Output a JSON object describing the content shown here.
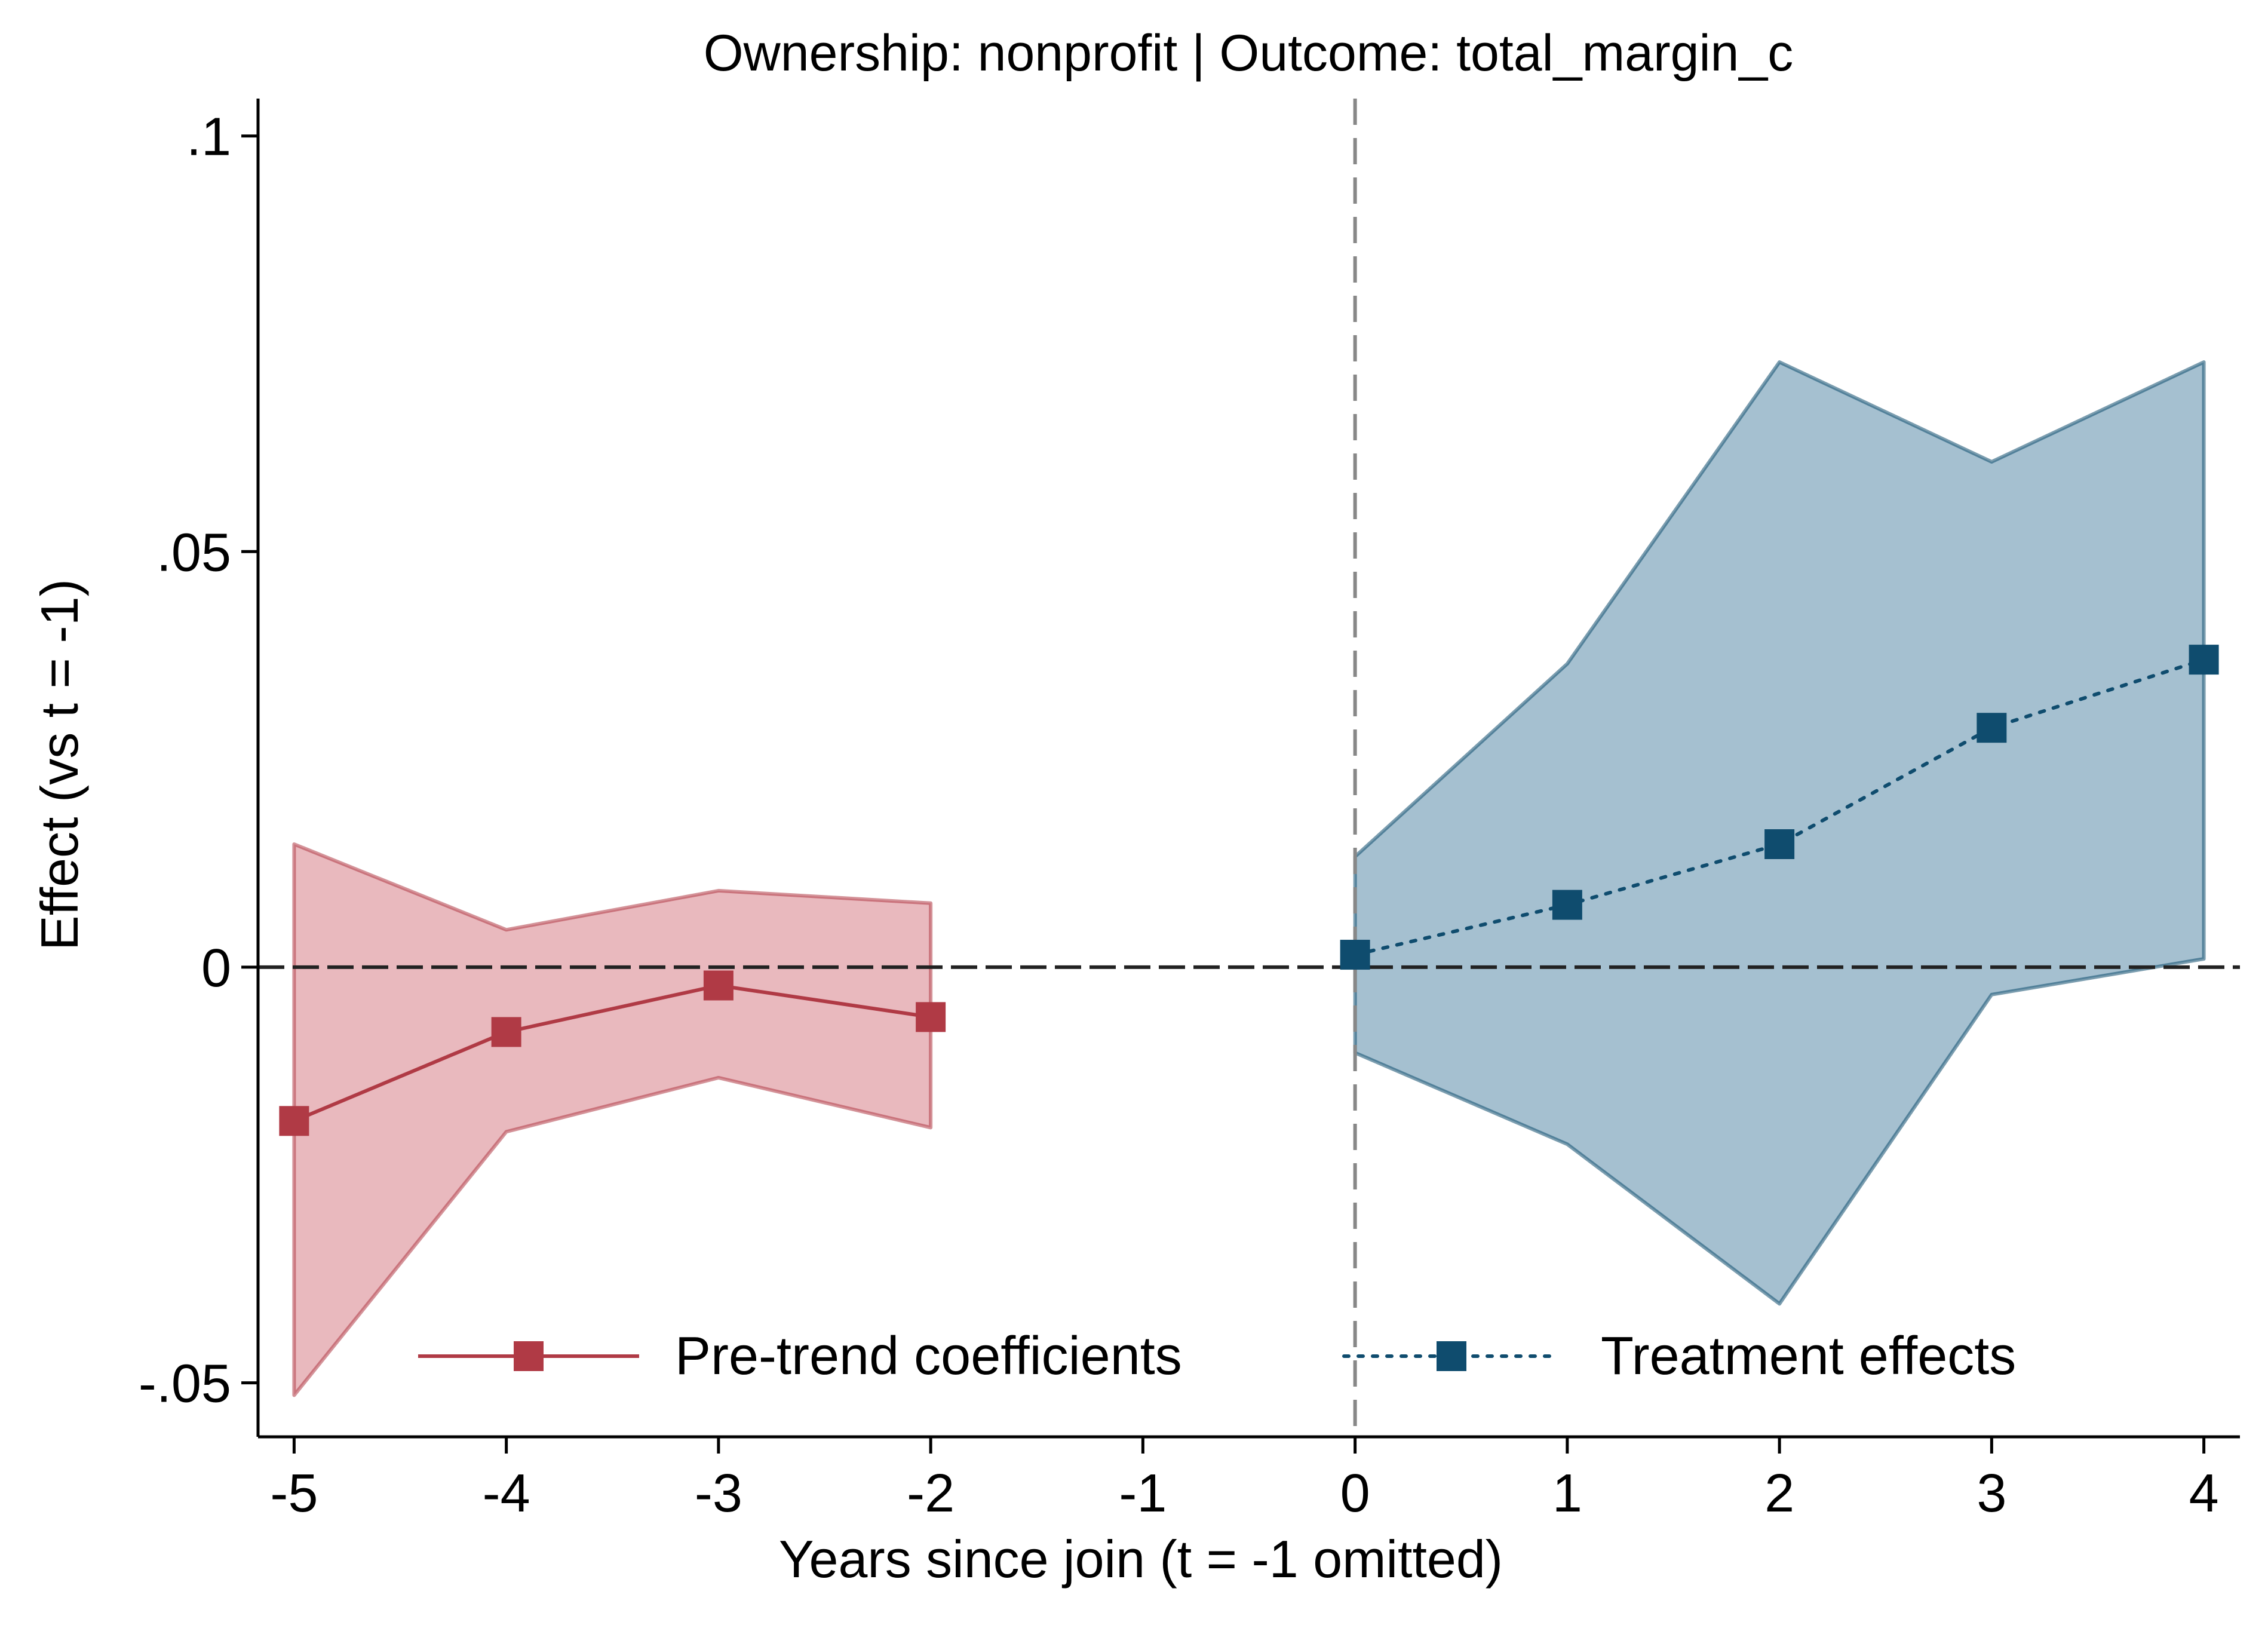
{
  "chart_data": {
    "type": "line",
    "title": "Ownership: nonprofit | Outcome: total_margin_c",
    "xlabel": "Years since join (t = -1 omitted)",
    "ylabel": "Effect (vs t = -1)",
    "xlim": [
      -5.17,
      4.17
    ],
    "ylim": [
      -0.0565,
      0.1045
    ],
    "x_ticks": [
      -5,
      -4,
      -3,
      -2,
      -1,
      0,
      1,
      2,
      3,
      4
    ],
    "x_tick_labels": [
      "-5",
      "-4",
      "-3",
      "-2",
      "-1",
      "0",
      "1",
      "2",
      "3",
      "4"
    ],
    "y_ticks": [
      -0.05,
      0,
      0.05,
      0.1
    ],
    "y_tick_labels": [
      "-.05",
      "0",
      ".05",
      ".1"
    ],
    "reference_lines": {
      "y": 0,
      "x": 0
    },
    "grid": false,
    "legend_position": "bottom-inside",
    "series": [
      {
        "name": "Pre-trend coefficients",
        "style": "solid",
        "color": "#b03a45",
        "band_color": "#e3a8ae",
        "x": [
          -5,
          -4,
          -3,
          -2
        ],
        "y": [
          -0.0185,
          -0.0078,
          -0.0022,
          -0.006
        ],
        "ci_low": [
          -0.0515,
          -0.0198,
          -0.0133,
          -0.0193
        ],
        "ci_high": [
          0.0148,
          0.0045,
          0.0092,
          0.0077
        ]
      },
      {
        "name": "Treatment effects",
        "style": "dotted",
        "color": "#0f4c6e",
        "band_color": "#8fb0c4",
        "x": [
          0,
          1,
          2,
          3,
          4
        ],
        "y": [
          0.0015,
          0.0075,
          0.0148,
          0.0288,
          0.037
        ],
        "ci_low": [
          -0.0103,
          -0.0213,
          -0.0405,
          -0.0033,
          0.001
        ],
        "ci_high": [
          0.0133,
          0.0365,
          0.0728,
          0.0608,
          0.0728
        ]
      }
    ]
  }
}
